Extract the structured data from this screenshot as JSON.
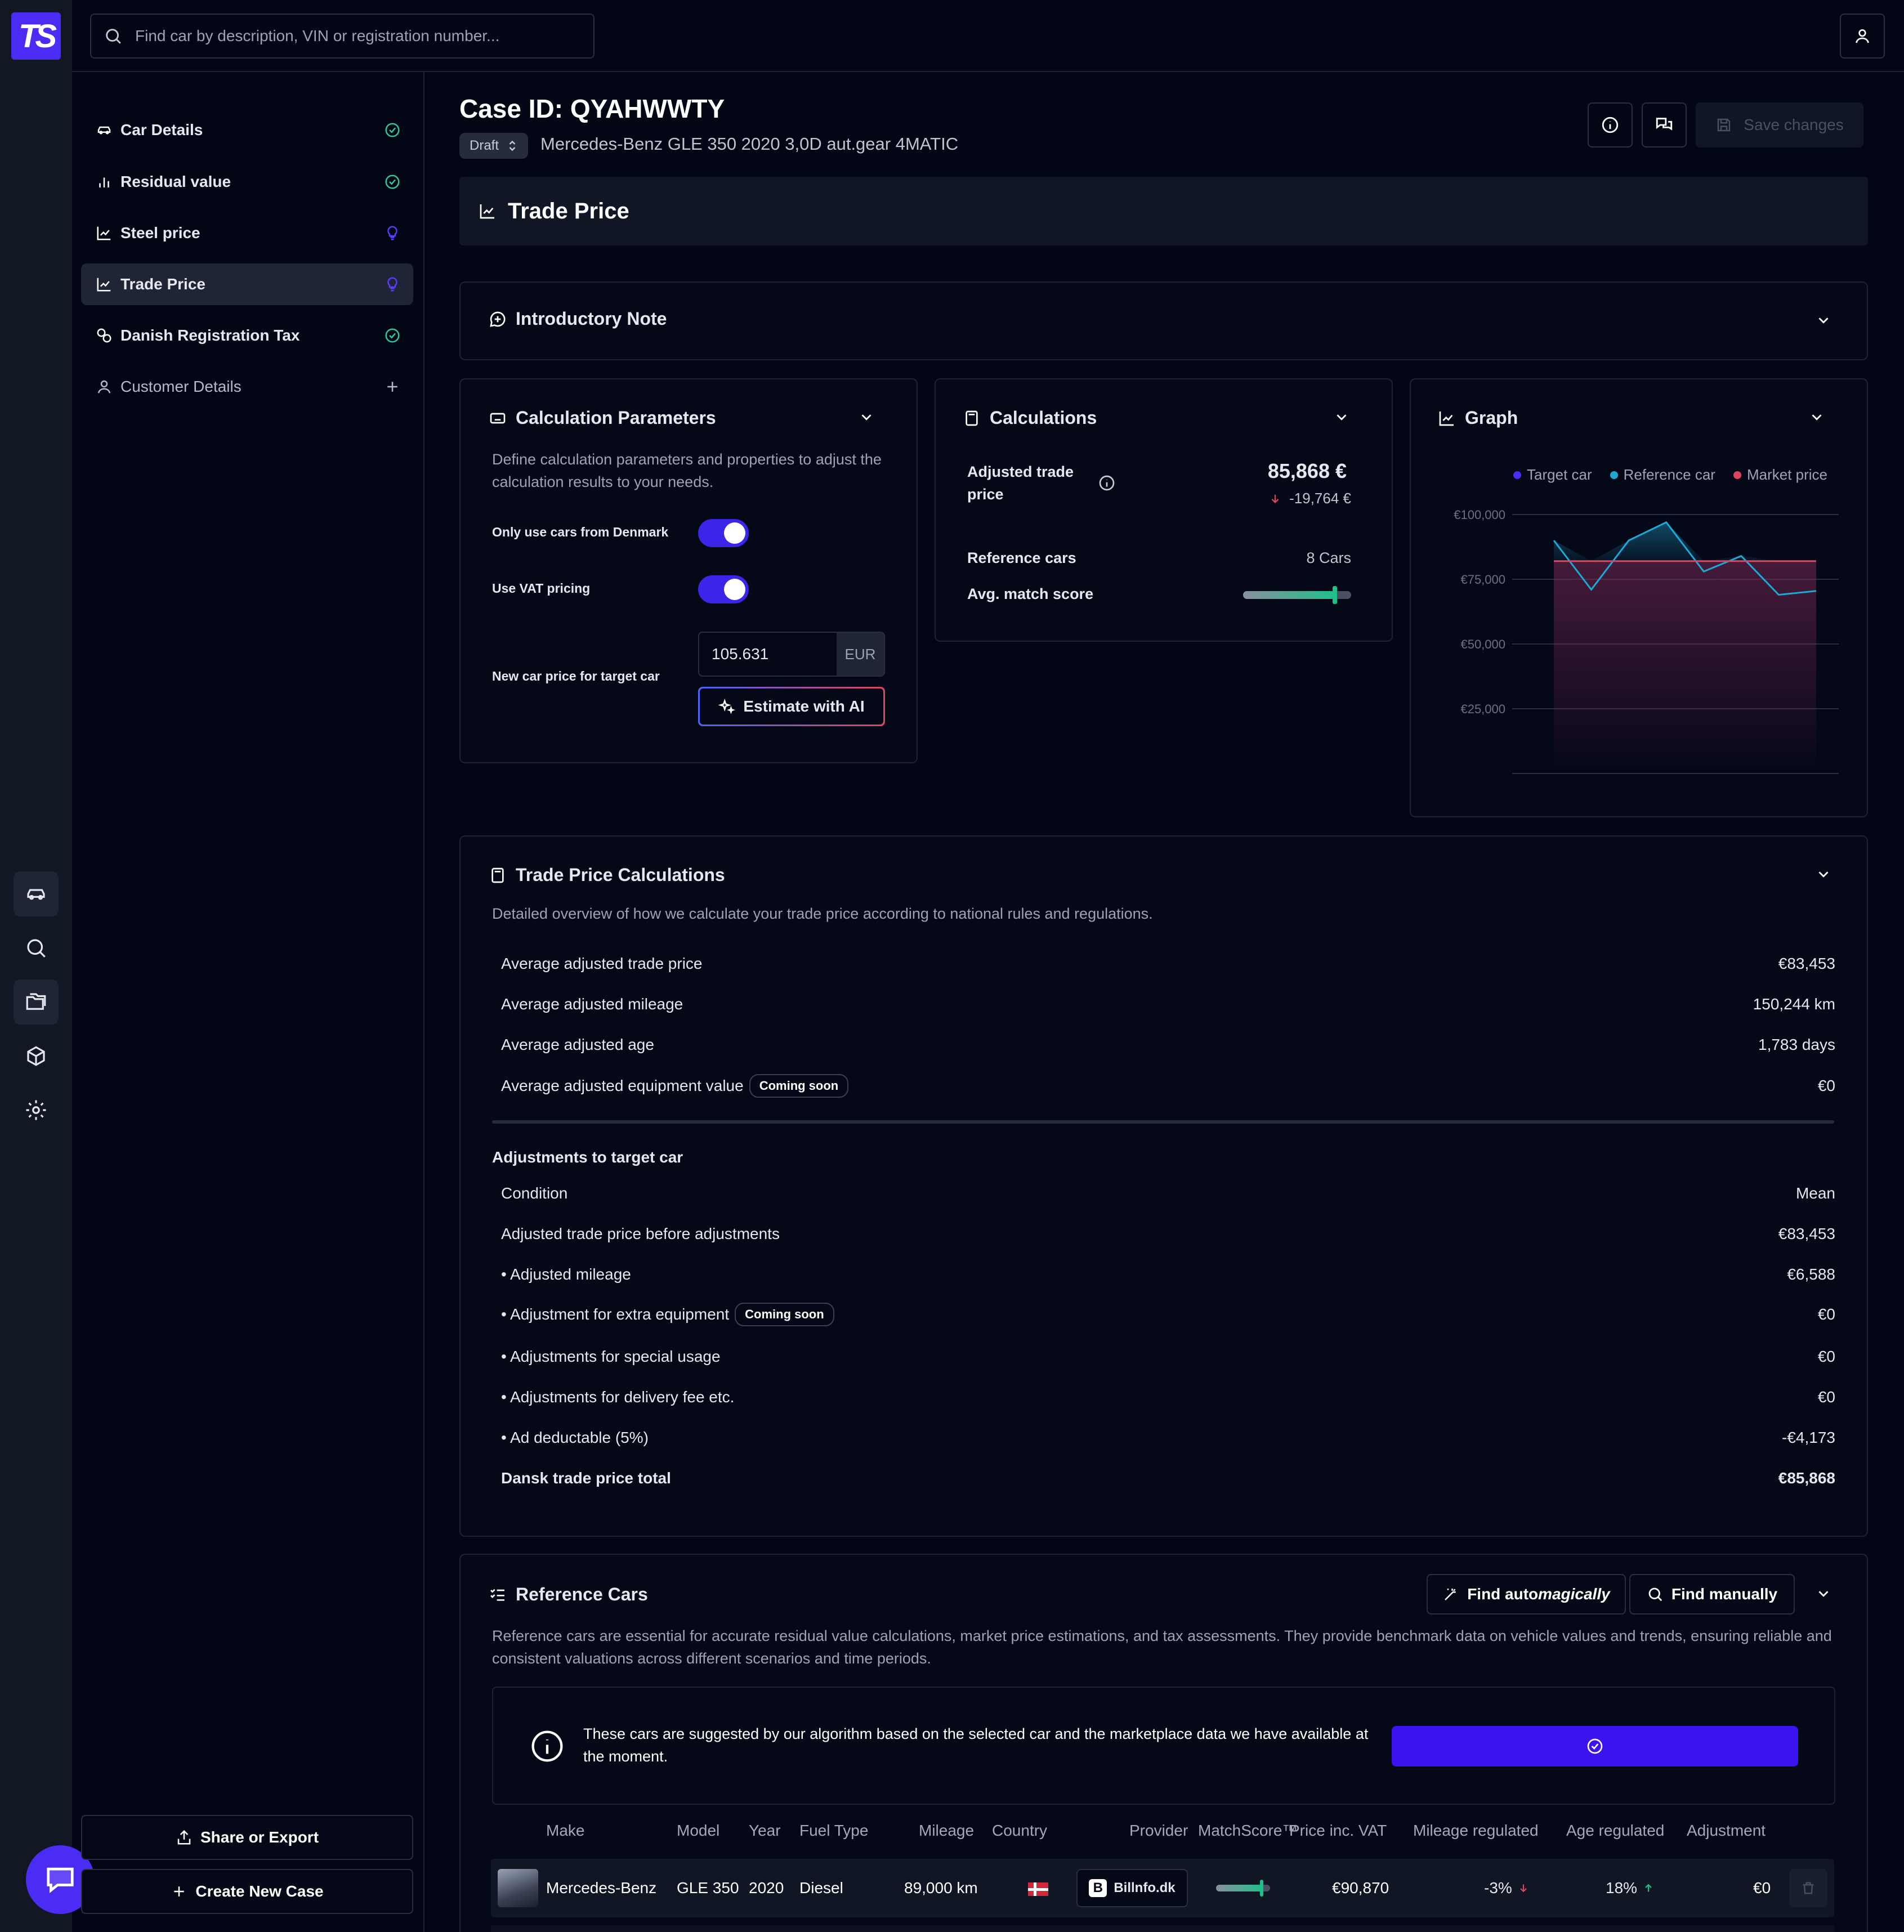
{
  "app": {
    "logo_text": "TS"
  },
  "search": {
    "placeholder": "Find car by description, VIN or registration number..."
  },
  "nav": {
    "items": [
      {
        "label": "Car Details",
        "status": "done"
      },
      {
        "label": "Residual value",
        "status": "done"
      },
      {
        "label": "Steel price",
        "status": "tip"
      },
      {
        "label": "Trade Price",
        "status": "tip",
        "active": true
      },
      {
        "label": "Danish Registration Tax",
        "status": "done"
      },
      {
        "label": "Customer Details",
        "status": "add"
      }
    ],
    "share_label": "Share or Export",
    "create_label": "Create New Case"
  },
  "header": {
    "case_title": "Case ID: QYAHWWTY",
    "status": "Draft",
    "car_description": "Mercedes-Benz GLE 350 2020 3,0D aut.gear 4MATIC",
    "save_label": "Save changes"
  },
  "section": {
    "title": "Trade Price"
  },
  "intro": {
    "title": "Introductory Note"
  },
  "params": {
    "title": "Calculation Parameters",
    "description": "Define calculation parameters and properties to adjust the calculation results to your needs.",
    "only_denmark_label": "Only use cars from Denmark",
    "vat_label": "Use VAT pricing",
    "new_price_label": "New car price for target car",
    "new_price_value": "105.631",
    "currency": "EUR",
    "estimate_label": "Estimate with AI"
  },
  "calculations": {
    "title": "Calculations",
    "adjusted_label": "Adjusted trade price",
    "adjusted_value": "85,868 €",
    "adjusted_delta": "-19,764 €",
    "ref_label": "Reference cars",
    "ref_value": "8 Cars",
    "match_label": "Avg. match score",
    "match_score": 0.85
  },
  "graph": {
    "title": "Graph"
  },
  "chart_data": {
    "type": "line",
    "legend": [
      "Target car",
      "Reference car",
      "Market price"
    ],
    "legend_position": "top-right",
    "series": [
      {
        "name": "Reference car",
        "values": [
          90000,
          71000,
          90000,
          97000,
          78000,
          84000,
          69000,
          70500
        ]
      },
      {
        "name": "Market price",
        "values": [
          82000,
          82000,
          82000,
          82000,
          82000,
          82000,
          82000,
          82000
        ]
      }
    ],
    "yticks": [
      "€100,000",
      "€75,000",
      "€50,000",
      "€25,000"
    ],
    "ytick_values": [
      100000,
      75000,
      50000,
      25000
    ],
    "ylim": [
      0,
      100000
    ],
    "grid": true,
    "colors": {
      "Target car": "#4b2cf5",
      "Reference car": "#1da9d6",
      "Market price": "#e0455e"
    }
  },
  "tpc": {
    "title": "Trade Price Calculations",
    "description": "Detailed overview of how we calculate your trade price according to national rules and regulations.",
    "rows": [
      {
        "label": "Average adjusted trade price",
        "value": "€83,453"
      },
      {
        "label": "Average adjusted mileage",
        "value": "150,244 km"
      },
      {
        "label": "Average adjusted age",
        "value": "1,783 days"
      },
      {
        "label": "Average adjusted equipment value",
        "value": "€0",
        "badge": "Coming soon"
      }
    ],
    "adjust_title": "Adjustments to target car",
    "adjust_rows": [
      {
        "label": "Condition",
        "value": "Mean"
      },
      {
        "label": "Adjusted trade price before adjustments",
        "value": "€83,453"
      },
      {
        "label": "• Adjusted mileage",
        "value": "€6,588"
      },
      {
        "label": "• Adjustment for extra equipment",
        "value": "€0",
        "badge": "Coming soon"
      },
      {
        "label": "• Adjustments for special usage",
        "value": "€0"
      },
      {
        "label": "• Adjustments for delivery fee etc.",
        "value": "€0"
      },
      {
        "label": "• Ad deductable (5%)",
        "value": "-€4,173"
      }
    ],
    "total_label": "Dansk trade price total",
    "total_value": "€85,868"
  },
  "refcars": {
    "title": "Reference Cars",
    "find_auto_prefix": "Find auto",
    "find_auto_suffix": "magically",
    "find_manual_label": "Find manually",
    "description": "Reference cars are essential for accurate residual value calculations, market price estimations, and tax assessments. They provide benchmark data on vehicle values and trends, ensuring reliable and consistent valuations across different scenarios and time periods.",
    "notice": "These cars are suggested by our algorithm based on the selected car and the marketplace data we have available at the moment.",
    "columns": [
      "Make",
      "Model",
      "Year",
      "Fuel Type",
      "Mileage",
      "Country",
      "Provider",
      "MatchScore™",
      "Price inc. VAT",
      "Mileage regulated",
      "Age regulated",
      "Adjustment"
    ],
    "rows": [
      {
        "make": "Mercedes-Benz",
        "model": "GLE 350",
        "year": "2020",
        "fuel": "Diesel",
        "mileage": "89,000 km",
        "provider": "Billnfo.dk",
        "provider_logo": "B",
        "match": 0.85,
        "price": "€90,870",
        "mileage_reg": "-3%",
        "age_reg": "18%",
        "adjustment": "€0"
      }
    ]
  }
}
